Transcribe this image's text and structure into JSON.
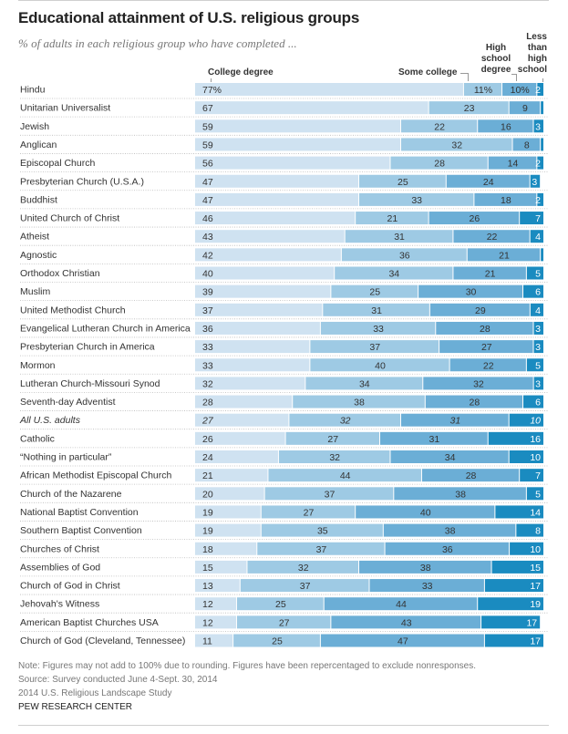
{
  "header": {
    "title": "Educational attainment of U.S. religious groups",
    "subtitle": "% of adults in each religious group who have completed ..."
  },
  "legend": {
    "college": "College degree",
    "some_college": "Some college",
    "high_school": [
      "High",
      "school",
      "degree"
    ],
    "less_than_hs": [
      "Less",
      "than",
      "high",
      "school"
    ]
  },
  "footer": {
    "note": "Note: Figures may not add to 100% due to rounding. Figures have been repercentaged to exclude nonresponses.",
    "source": "Source: Survey conducted June 4-Sept. 30, 2014",
    "study": "2014 U.S. Religious Landscape Study",
    "brand": "PEW RESEARCH CENTER"
  },
  "colors": {
    "college": "#cfe2f1",
    "some_college": "#9ecae4",
    "high_school": "#6baed6",
    "less_than_hs": "#1a8bc0",
    "label_dark": "#333333",
    "label_light": "#ffffff",
    "divider": "#bbbbbb"
  },
  "chart_data": {
    "type": "bar",
    "orientation": "horizontal-stacked-100",
    "title": "Educational attainment of U.S. religious groups",
    "subtitle": "% of adults in each religious group who have completed ...",
    "xlim": [
      0,
      100
    ],
    "grid": false,
    "legend_position": "top-inline",
    "series_names": [
      "College degree",
      "Some college",
      "High school degree",
      "Less than high school"
    ],
    "first_row_percent_suffix": true,
    "categories": [
      "Hindu",
      "Unitarian Universalist",
      "Jewish",
      "Anglican",
      "Episcopal Church",
      "Presbyterian Church (U.S.A.)",
      "Buddhist",
      "United Church of Christ",
      "Atheist",
      "Agnostic",
      "Orthodox Christian",
      "Muslim",
      "United Methodist Church",
      "Evangelical Lutheran Church in America",
      "Presbyterian Church in America",
      "Mormon",
      "Lutheran Church-Missouri Synod",
      "Seventh-day Adventist",
      "All U.S. adults",
      "Catholic",
      "“Nothing in particular”",
      "African Methodist Episcopal Church",
      "Church of the Nazarene",
      "National Baptist Convention",
      "Southern Baptist Convention",
      "Churches of Christ",
      "Assemblies of God",
      "Church of God in Christ",
      "Jehovah's Witness",
      "American Baptist Churches USA",
      "Church of God (Cleveland, Tennessee)"
    ],
    "italic_categories": [
      "All U.S. adults"
    ],
    "series": [
      {
        "name": "College degree",
        "values": [
          77,
          67,
          59,
          59,
          56,
          47,
          47,
          46,
          43,
          42,
          40,
          39,
          37,
          36,
          33,
          33,
          32,
          28,
          27,
          26,
          24,
          21,
          20,
          19,
          19,
          18,
          15,
          13,
          12,
          12,
          11
        ]
      },
      {
        "name": "Some college",
        "values": [
          11,
          23,
          22,
          32,
          28,
          25,
          33,
          21,
          31,
          36,
          34,
          25,
          31,
          33,
          37,
          40,
          34,
          38,
          32,
          27,
          32,
          44,
          37,
          27,
          35,
          37,
          32,
          37,
          25,
          27,
          25
        ]
      },
      {
        "name": "High school degree",
        "values": [
          10,
          9,
          16,
          8,
          14,
          24,
          18,
          26,
          22,
          21,
          21,
          30,
          29,
          28,
          27,
          22,
          32,
          28,
          31,
          31,
          34,
          28,
          38,
          40,
          38,
          36,
          38,
          33,
          44,
          43,
          47
        ]
      },
      {
        "name": "Less than high school",
        "values": [
          2,
          1,
          3,
          1,
          2,
          3,
          2,
          7,
          4,
          1,
          5,
          6,
          4,
          3,
          3,
          5,
          3,
          6,
          10,
          16,
          10,
          7,
          5,
          14,
          8,
          10,
          15,
          17,
          19,
          17,
          17
        ]
      }
    ],
    "hidden_labels": [
      [
        false,
        false,
        false,
        false
      ],
      [
        false,
        false,
        false,
        true
      ],
      [
        false,
        false,
        false,
        false
      ],
      [
        false,
        false,
        false,
        true
      ],
      [
        false,
        false,
        false,
        false
      ],
      [
        false,
        false,
        false,
        false
      ],
      [
        false,
        false,
        false,
        false
      ],
      [
        false,
        false,
        false,
        false
      ],
      [
        false,
        false,
        false,
        false
      ],
      [
        false,
        false,
        false,
        true
      ],
      [
        false,
        false,
        false,
        false
      ],
      [
        false,
        false,
        false,
        false
      ],
      [
        false,
        false,
        false,
        false
      ],
      [
        false,
        false,
        false,
        false
      ],
      [
        false,
        false,
        false,
        false
      ],
      [
        false,
        false,
        false,
        false
      ],
      [
        false,
        false,
        false,
        false
      ],
      [
        false,
        false,
        false,
        false
      ],
      [
        false,
        false,
        false,
        false
      ],
      [
        false,
        false,
        false,
        false
      ],
      [
        false,
        false,
        false,
        false
      ],
      [
        false,
        false,
        false,
        false
      ],
      [
        false,
        false,
        false,
        false
      ],
      [
        false,
        false,
        false,
        false
      ],
      [
        false,
        false,
        false,
        false
      ],
      [
        false,
        false,
        false,
        false
      ],
      [
        false,
        false,
        false,
        false
      ],
      [
        false,
        false,
        false,
        false
      ],
      [
        false,
        false,
        false,
        false
      ],
      [
        false,
        false,
        false,
        false
      ],
      [
        false,
        false,
        false,
        false
      ]
    ]
  }
}
